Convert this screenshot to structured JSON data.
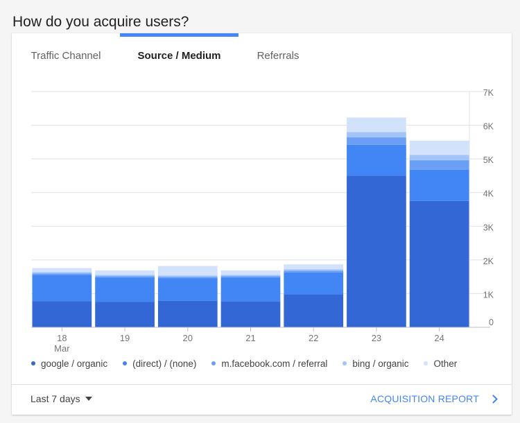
{
  "page": {
    "title": "How do you acquire users?"
  },
  "tabs": [
    {
      "label": "Traffic Channel",
      "active": false
    },
    {
      "label": "Source / Medium",
      "active": true
    },
    {
      "label": "Referrals",
      "active": false
    }
  ],
  "colors": {
    "accent": "#4285f4",
    "series": [
      "#3367d6",
      "#4285f4",
      "#6a9ff5",
      "#a3c4f8",
      "#d2e2fb"
    ],
    "grid": "#e0e0e0",
    "axis_text": "#757575"
  },
  "chart_data": {
    "type": "bar",
    "stacked": true,
    "categories": [
      "18",
      "19",
      "20",
      "21",
      "22",
      "23",
      "24"
    ],
    "category_sublabels": [
      "Mar",
      "",
      "",
      "",
      "",
      "",
      ""
    ],
    "series": [
      {
        "name": "google / organic",
        "values": [
          780,
          760,
          790,
          770,
          980,
          4500,
          3750
        ]
      },
      {
        "name": "(direct) / (none)",
        "values": [
          780,
          720,
          670,
          710,
          650,
          920,
          930
        ]
      },
      {
        "name": "m.facebook.com / referral",
        "values": [
          40,
          40,
          40,
          40,
          50,
          220,
          280
        ]
      },
      {
        "name": "bing / organic",
        "values": [
          40,
          40,
          40,
          40,
          40,
          160,
          160
        ]
      },
      {
        "name": "Other",
        "values": [
          120,
          130,
          280,
          130,
          150,
          430,
          420
        ]
      }
    ],
    "y_ticks": [
      "0",
      "1K",
      "2K",
      "3K",
      "4K",
      "5K",
      "6K",
      "7K"
    ],
    "y_axis_position": "right",
    "ylim": [
      0,
      7000
    ],
    "grid": true,
    "legend_position": "bottom"
  },
  "footer": {
    "range_label": "Last 7 days",
    "report_label": "ACQUISITION REPORT"
  }
}
